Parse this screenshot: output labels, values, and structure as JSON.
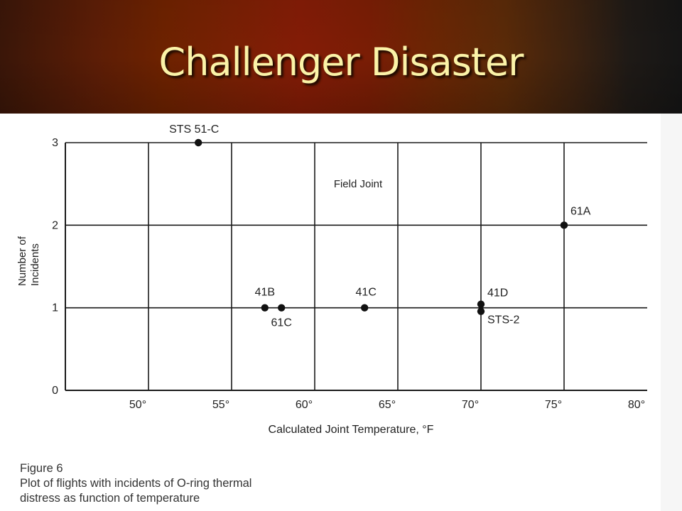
{
  "slide": {
    "title": "Challenger Disaster"
  },
  "chart_data": {
    "type": "scatter",
    "title": "Field Joint",
    "xlabel": "Calculated Joint Temperature, °F",
    "ylabel_lines": [
      "Number of",
      "Incidents"
    ],
    "xlim": [
      45,
      80
    ],
    "ylim": [
      0,
      3
    ],
    "x_ticks": [
      50,
      55,
      60,
      65,
      70,
      75,
      80
    ],
    "x_tick_labels": [
      "50°",
      "55°",
      "60°",
      "65°",
      "70°",
      "75°",
      "80°"
    ],
    "y_ticks": [
      0,
      1,
      2,
      3
    ],
    "y_tick_labels": [
      "0",
      "1",
      "2",
      "3"
    ],
    "grid": true,
    "points": [
      {
        "label": "STS 51-C",
        "x": 53,
        "y": 3
      },
      {
        "label": "41B",
        "x": 57,
        "y": 1
      },
      {
        "label": "61C",
        "x": 58,
        "y": 1
      },
      {
        "label": "41C",
        "x": 63,
        "y": 1
      },
      {
        "label": "41D",
        "x": 70,
        "y": 1
      },
      {
        "label": "STS-2",
        "x": 70,
        "y": 1
      },
      {
        "label": "61A",
        "x": 75,
        "y": 2
      }
    ]
  },
  "caption": {
    "line1": "Figure 6",
    "line2": "Plot of flights with incidents of O-ring thermal",
    "line3": "distress as function of temperature"
  }
}
